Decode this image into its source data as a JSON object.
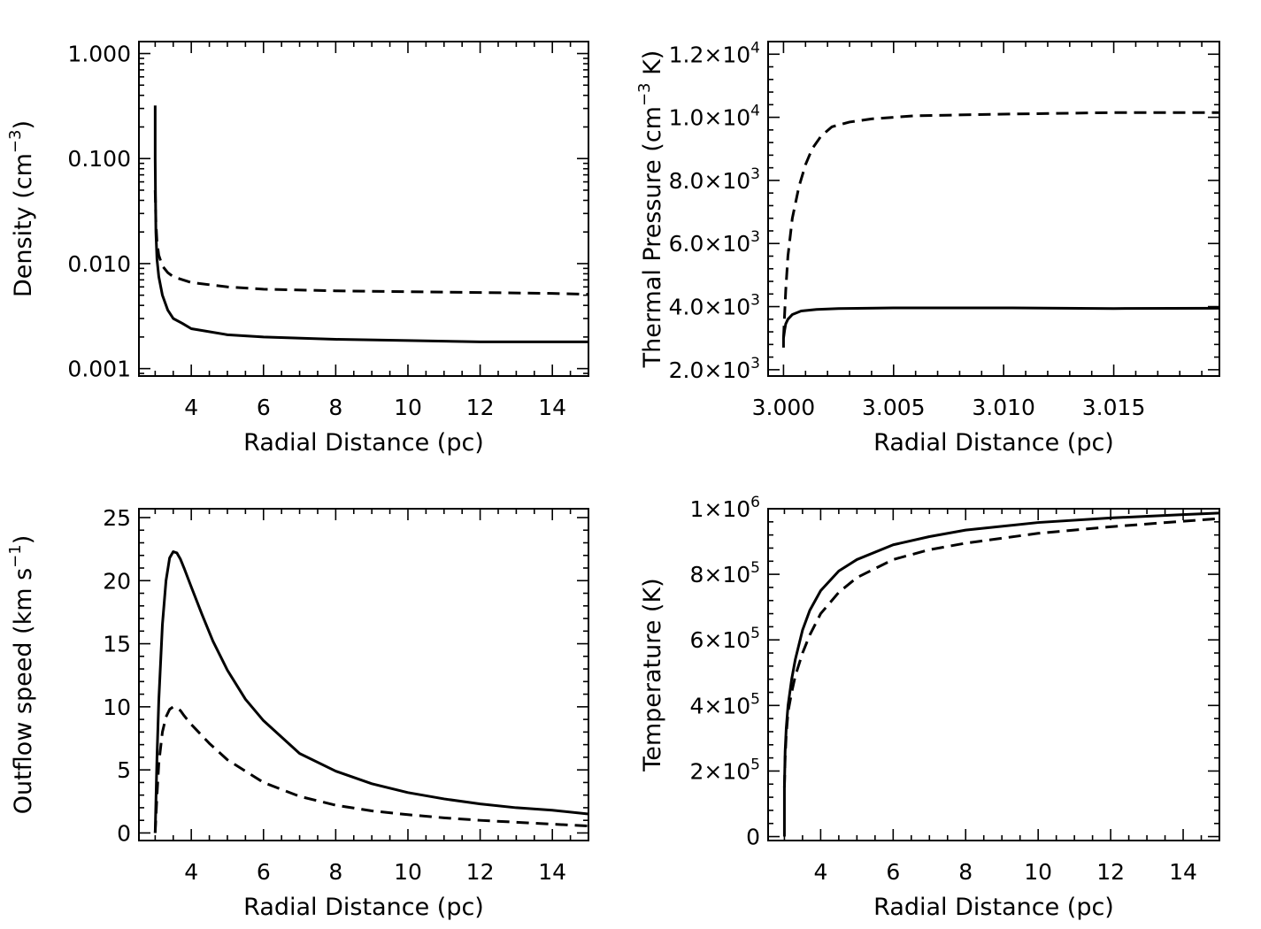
{
  "chart_data": [
    {
      "id": "density",
      "type": "line",
      "xlabel": "Radial Distance (pc)",
      "ylabel": {
        "main": "Density (cm",
        "sup": "−3",
        "end": ")"
      },
      "xlim": [
        2.55,
        15
      ],
      "ylim": [
        0.00085,
        1.3
      ],
      "yscale": "log",
      "grid": false,
      "xticks": {
        "major": [
          4,
          6,
          8,
          10,
          12,
          14
        ],
        "labels": [
          "4",
          "6",
          "8",
          "10",
          "12",
          "14"
        ],
        "minor_step": 0.5
      },
      "yticks": {
        "major": [
          0.001,
          0.01,
          0.1,
          1.0
        ],
        "labels": [
          "0.001",
          "0.010",
          "0.100",
          "1.000"
        ],
        "log_minor": true
      },
      "series": [
        {
          "style": "solid",
          "x": [
            3.0,
            3.0,
            3.01,
            3.02,
            3.05,
            3.1,
            3.2,
            3.35,
            3.5,
            3.75,
            4.0,
            5.0,
            6.0,
            8.0,
            10.0,
            12.0,
            14.0,
            15.0
          ],
          "y": [
            0.32,
            0.1,
            0.04,
            0.02,
            0.011,
            0.0075,
            0.005,
            0.0036,
            0.003,
            0.0027,
            0.0024,
            0.0021,
            0.002,
            0.0019,
            0.00185,
            0.0018,
            0.0018,
            0.0018
          ]
        },
        {
          "style": "dashed",
          "x": [
            3.0,
            3.02,
            3.05,
            3.1,
            3.2,
            3.35,
            3.5,
            4.0,
            5.0,
            6.0,
            8.0,
            10.0,
            12.0,
            14.0,
            15.0
          ],
          "y": [
            0.05,
            0.025,
            0.016,
            0.012,
            0.0095,
            0.0082,
            0.0075,
            0.0066,
            0.006,
            0.0057,
            0.0055,
            0.0054,
            0.0053,
            0.0052,
            0.0051
          ]
        }
      ]
    },
    {
      "id": "pressure",
      "type": "line",
      "xlabel": "Radial Distance (pc)",
      "ylabel": {
        "main": "Thermal Pressure (cm",
        "sup": "−3",
        "end": " K)"
      },
      "xlim": [
        2.9993,
        3.0198
      ],
      "ylim": [
        1800,
        12400
      ],
      "grid": false,
      "xticks": {
        "major": [
          3.0,
          3.005,
          3.01,
          3.015
        ],
        "labels": [
          "3.000",
          "3.005",
          "3.010",
          "3.015"
        ],
        "minor_step": 0.001
      },
      "yticks": {
        "major": [
          2000,
          4000,
          6000,
          8000,
          10000,
          12000
        ],
        "labels": [
          {
            "m": "2.0×10",
            "e": "3"
          },
          {
            "m": "4.0×10",
            "e": "3"
          },
          {
            "m": "6.0×10",
            "e": "3"
          },
          {
            "m": "8.0×10",
            "e": "3"
          },
          {
            "m": "1.0×10",
            "e": "4"
          },
          {
            "m": "1.2×10",
            "e": "4"
          }
        ],
        "minor_step": 400
      },
      "series": [
        {
          "style": "solid",
          "x": [
            3.0,
            3.0,
            3.00005,
            3.0001,
            3.0002,
            3.0004,
            3.0008,
            3.0015,
            3.0025,
            3.005,
            3.01,
            3.015,
            3.0198
          ],
          "y": [
            2700,
            3000,
            3250,
            3450,
            3600,
            3750,
            3860,
            3910,
            3940,
            3960,
            3960,
            3940,
            3950
          ]
        },
        {
          "style": "dashed",
          "x": [
            3.0,
            3.0001,
            3.0002,
            3.0004,
            3.0007,
            3.001,
            3.0013,
            3.0017,
            3.0022,
            3.003,
            3.004,
            3.006,
            3.01,
            3.015,
            3.0198
          ],
          "y": [
            3000,
            4500,
            5600,
            6800,
            7800,
            8500,
            9000,
            9400,
            9700,
            9850,
            9950,
            10050,
            10100,
            10150,
            10150
          ]
        }
      ]
    },
    {
      "id": "speed",
      "type": "line",
      "xlabel": "Radial Distance (pc)",
      "ylabel": {
        "main": "Outflow speed (km s",
        "sup": "−1",
        "end": ")"
      },
      "xlim": [
        2.55,
        15
      ],
      "ylim": [
        -0.6,
        25.7
      ],
      "grid": false,
      "xticks": {
        "major": [
          4,
          6,
          8,
          10,
          12,
          14
        ],
        "labels": [
          "4",
          "6",
          "8",
          "10",
          "12",
          "14"
        ],
        "minor_step": 0.5
      },
      "yticks": {
        "major": [
          0,
          5,
          10,
          15,
          20,
          25
        ],
        "labels": [
          "0",
          "5",
          "10",
          "15",
          "20",
          "25"
        ],
        "minor_step": 1
      },
      "series": [
        {
          "style": "solid",
          "x": [
            3.0,
            3.05,
            3.1,
            3.2,
            3.3,
            3.4,
            3.5,
            3.6,
            3.7,
            3.8,
            4.0,
            4.3,
            4.6,
            5.0,
            5.5,
            6.0,
            7.0,
            8.0,
            9.0,
            10.0,
            11.0,
            12.0,
            13.0,
            14.0,
            15.0
          ],
          "y": [
            0,
            6,
            10.5,
            16.5,
            20,
            21.8,
            22.3,
            22.2,
            21.7,
            21.0,
            19.5,
            17.3,
            15.2,
            12.9,
            10.6,
            8.9,
            6.3,
            4.9,
            3.9,
            3.2,
            2.7,
            2.3,
            2.0,
            1.8,
            1.5
          ]
        },
        {
          "style": "dashed",
          "x": [
            3.0,
            3.05,
            3.1,
            3.2,
            3.3,
            3.4,
            3.5,
            3.6,
            3.7,
            3.8,
            4.0,
            4.5,
            5.0,
            6.0,
            7.0,
            8.0,
            9.0,
            10.0,
            11.0,
            12.0,
            13.0,
            14.0,
            15.0
          ],
          "y": [
            0,
            3,
            5.5,
            8.0,
            9.2,
            9.8,
            10.0,
            9.9,
            9.7,
            9.3,
            8.6,
            7.1,
            5.8,
            4.0,
            2.9,
            2.2,
            1.75,
            1.45,
            1.2,
            1.0,
            0.85,
            0.7,
            0.55
          ]
        }
      ]
    },
    {
      "id": "temperature",
      "type": "line",
      "xlabel": "Radial Distance (pc)",
      "ylabel": {
        "main": "Temperature (K)",
        "sup": "",
        "end": ""
      },
      "xlim": [
        2.55,
        15
      ],
      "ylim": [
        -12000,
        1000000
      ],
      "grid": false,
      "xticks": {
        "major": [
          4,
          6,
          8,
          10,
          12,
          14
        ],
        "labels": [
          "4",
          "6",
          "8",
          "10",
          "12",
          "14"
        ],
        "minor_step": 0.5
      },
      "yticks": {
        "major": [
          0,
          200000,
          400000,
          600000,
          800000,
          1000000
        ],
        "labels": [
          {
            "m": "0",
            "e": ""
          },
          {
            "m": "2×10",
            "e": "5"
          },
          {
            "m": "4×10",
            "e": "5"
          },
          {
            "m": "6×10",
            "e": "5"
          },
          {
            "m": "8×10",
            "e": "5"
          },
          {
            "m": "1×10",
            "e": "6"
          }
        ],
        "minor_step": 40000
      },
      "series": [
        {
          "style": "solid",
          "x": [
            3.0,
            3.0,
            3.02,
            3.05,
            3.1,
            3.2,
            3.3,
            3.5,
            3.7,
            4.0,
            4.5,
            5.0,
            6.0,
            7.0,
            8.0,
            10.0,
            12.0,
            14.0,
            15.0
          ],
          "y": [
            0,
            150000,
            260000,
            330000,
            400000,
            480000,
            540000,
            630000,
            690000,
            750000,
            810000,
            845000,
            890000,
            915000,
            935000,
            958000,
            972000,
            982000,
            987000
          ]
        },
        {
          "style": "dashed",
          "x": [
            3.0,
            3.02,
            3.05,
            3.1,
            3.2,
            3.3,
            3.5,
            3.7,
            4.0,
            4.5,
            5.0,
            6.0,
            7.0,
            8.0,
            10.0,
            12.0,
            14.0,
            15.0
          ],
          "y": [
            150000,
            240000,
            310000,
            380000,
            440000,
            490000,
            560000,
            615000,
            680000,
            745000,
            790000,
            845000,
            875000,
            895000,
            925000,
            945000,
            962000,
            970000
          ]
        }
      ]
    }
  ]
}
